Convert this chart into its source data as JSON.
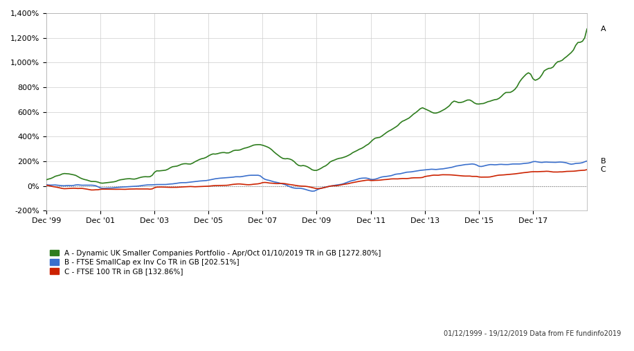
{
  "title": "",
  "background_color": "#ffffff",
  "plot_bg_color": "#ffffff",
  "grid_color": "#cccccc",
  "ylim": [
    -200,
    1400
  ],
  "yticks": [
    -200,
    0,
    200,
    400,
    600,
    800,
    1000,
    1200,
    1400
  ],
  "xtick_labels": [
    "Dec '99",
    "Dec '01",
    "Dec '03",
    "Dec '05",
    "Dec '07",
    "Dec '09",
    "Dec '11",
    "Dec '13",
    "Dec '15",
    "Dec '17"
  ],
  "xtick_positions": [
    0,
    24,
    48,
    72,
    96,
    120,
    144,
    168,
    192,
    216
  ],
  "line_A_color": "#2e7d1e",
  "line_B_color": "#3a6fcc",
  "line_C_color": "#cc2200",
  "line_width": 1.2,
  "label_A": "A - Dynamic UK Smaller Companies Portfolio - Apr/Oct 01/10/2019 TR in GB [1272.80%]",
  "label_B": "B - FTSE SmallCap ex Inv Co TR in GB [202.51%]",
  "label_C": "C - FTSE 100 TR in GB [132.86%]",
  "annotation_A": "A",
  "annotation_B": "B",
  "annotation_C": "C",
  "footnote": "01/12/1999 - 19/12/2019 Data from FE fundinfo2019",
  "legend_square_size": 10,
  "zero_line_style": "dotted",
  "zero_line_color": "#888888"
}
